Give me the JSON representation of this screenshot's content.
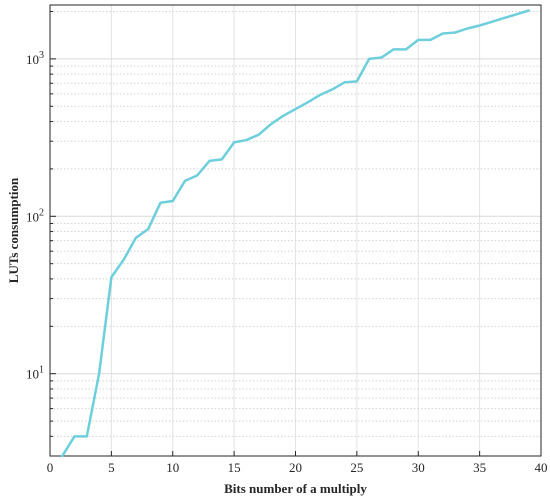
{
  "chart_data": {
    "type": "line",
    "title": "",
    "xlabel": "Bits number of  a multiply",
    "ylabel": "LUTs consumption",
    "xlim": [
      0,
      40
    ],
    "ylim": [
      3,
      2200
    ],
    "yscale": "log",
    "grid": true,
    "line_color": "#6dcfdc",
    "x_ticks": [
      "0",
      "5",
      "10",
      "15",
      "20",
      "25",
      "30",
      "35",
      "40"
    ],
    "y_ticks": [
      {
        "base": "10",
        "exp": "1"
      },
      {
        "base": "10",
        "exp": "2"
      },
      {
        "base": "10",
        "exp": "3"
      }
    ],
    "series": [
      {
        "x": [
          1,
          2,
          3,
          4,
          5,
          6,
          7,
          8,
          9,
          10,
          11,
          12,
          13,
          14,
          15,
          16,
          17,
          18,
          19,
          20,
          21,
          22,
          23,
          24,
          25,
          26,
          27,
          28,
          29,
          30,
          31,
          32,
          33,
          34,
          35,
          36,
          37,
          38,
          39
        ],
        "y": [
          3,
          4,
          4,
          10,
          41,
          53,
          73,
          83,
          122,
          125,
          168,
          182,
          225,
          230,
          295,
          305,
          330,
          385,
          435,
          480,
          530,
          590,
          640,
          710,
          720,
          1000,
          1020,
          1150,
          1150,
          1320,
          1320,
          1450,
          1470,
          1560,
          1630,
          1720,
          1820,
          1920,
          2030
        ]
      }
    ]
  }
}
